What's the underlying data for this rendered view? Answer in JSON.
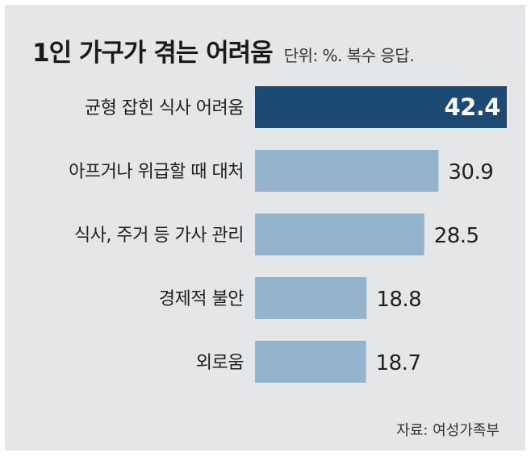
{
  "chart_data": {
    "type": "bar",
    "orientation": "horizontal",
    "title": "1인 가구가 겪는 어려움",
    "subtitle": "단위: %. 복수 응답.",
    "categories": [
      "균형 잡힌 식사 어려움",
      "아프거나 위급할 때 대처",
      "식사, 주거 등 가사 관리",
      "경제적 불안",
      "외로움"
    ],
    "values": [
      42.4,
      30.9,
      28.5,
      18.8,
      18.7
    ],
    "value_labels": [
      "42.4",
      "30.9",
      "28.5",
      "18.8",
      "18.7"
    ],
    "highlight_index": 0,
    "xlim": [
      0,
      42.4
    ],
    "grid": false,
    "legend": "none",
    "source": "자료: 여성가족부"
  },
  "colors": {
    "highlight_bar": "#1c4a75",
    "bar": "#94b4cd",
    "background": "#e5e6e8"
  }
}
